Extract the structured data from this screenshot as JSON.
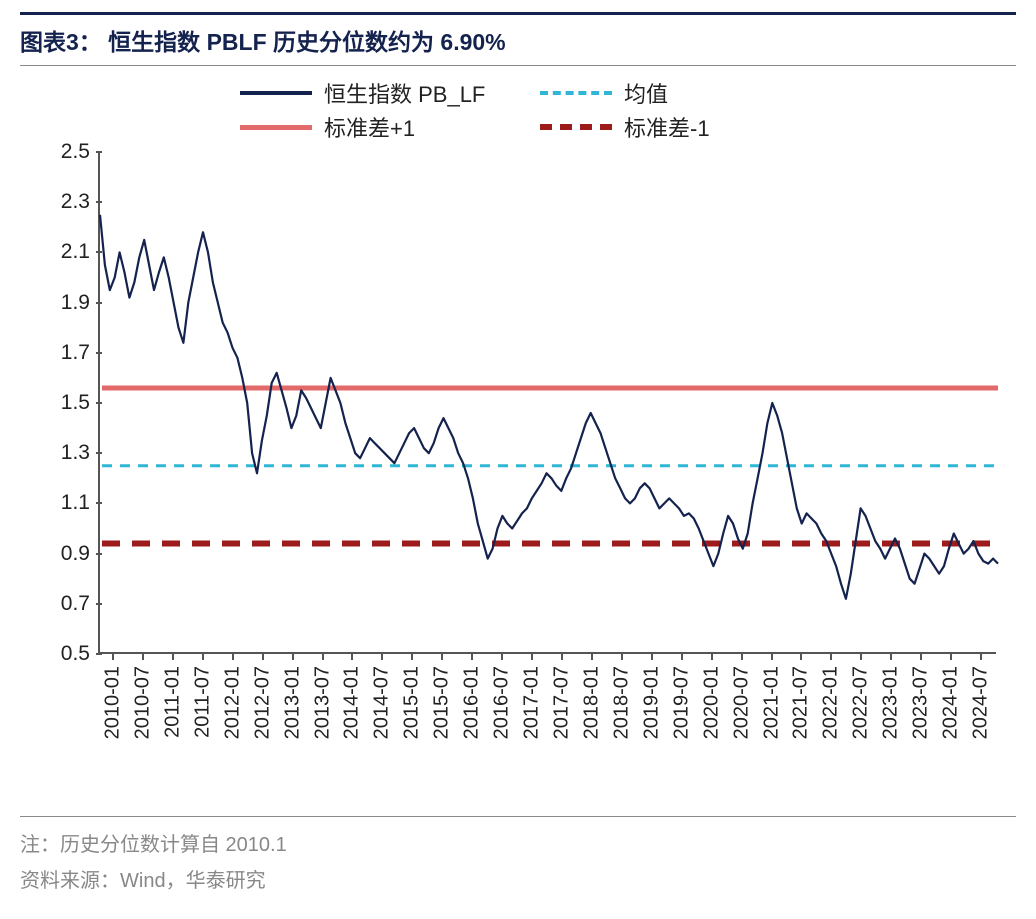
{
  "title": "图表3：  恒生指数 PBLF 历史分位数约为 6.90%",
  "footer": {
    "note": "注：历史分位数计算自 2010.1",
    "source": "资料来源：Wind，华泰研究"
  },
  "chart": {
    "type": "line",
    "background_color": "#ffffff",
    "title_color": "#14224e",
    "axis_color": "#555555",
    "label_fontsize": 21,
    "xlabel_fontsize": 20,
    "ylim": [
      0.5,
      2.5
    ],
    "yticks": [
      0.5,
      0.7,
      0.9,
      1.1,
      1.3,
      1.5,
      1.7,
      1.9,
      2.1,
      2.3,
      2.5
    ],
    "xticks": [
      "2010-01",
      "2010-07",
      "2011-01",
      "2011-07",
      "2012-01",
      "2012-07",
      "2013-01",
      "2013-07",
      "2014-01",
      "2014-07",
      "2015-01",
      "2015-07",
      "2016-01",
      "2016-07",
      "2017-01",
      "2017-07",
      "2018-01",
      "2018-07",
      "2019-01",
      "2019-07",
      "2020-01",
      "2020-07",
      "2021-01",
      "2021-07",
      "2022-01",
      "2022-07",
      "2023-01",
      "2023-07",
      "2024-01",
      "2024-07"
    ],
    "legend": {
      "items": [
        {
          "key": "pb_lf",
          "label": "恒生指数 PB_LF",
          "swatch": "sw-solid-navy"
        },
        {
          "key": "mean",
          "label": "均值",
          "swatch": "sw-dash-cyan"
        },
        {
          "key": "sd_p1",
          "label": "标准差+1",
          "swatch": "sw-solid-red"
        },
        {
          "key": "sd_m1",
          "label": "标准差-1",
          "swatch": "sw-dash-dkred"
        }
      ]
    },
    "ref_lines": {
      "mean": {
        "value": 1.25,
        "color": "#2fb6d6",
        "dash": "10,8",
        "width": 3
      },
      "sd_p1": {
        "value": 1.56,
        "color": "#e26a6a",
        "dash": null,
        "width": 5
      },
      "sd_m1": {
        "value": 0.94,
        "color": "#9e1b1b",
        "dash": "18,12",
        "width": 6
      }
    },
    "main_series": {
      "color": "#14224e",
      "width": 2.2,
      "values": [
        2.25,
        2.05,
        1.95,
        2.0,
        2.1,
        2.02,
        1.92,
        1.98,
        2.08,
        2.15,
        2.05,
        1.95,
        2.02,
        2.08,
        2.0,
        1.9,
        1.8,
        1.74,
        1.9,
        2.0,
        2.1,
        2.18,
        2.1,
        1.98,
        1.9,
        1.82,
        1.78,
        1.72,
        1.68,
        1.6,
        1.5,
        1.3,
        1.22,
        1.35,
        1.45,
        1.58,
        1.62,
        1.55,
        1.48,
        1.4,
        1.45,
        1.55,
        1.52,
        1.48,
        1.44,
        1.4,
        1.5,
        1.6,
        1.55,
        1.5,
        1.42,
        1.36,
        1.3,
        1.28,
        1.32,
        1.36,
        1.34,
        1.32,
        1.3,
        1.28,
        1.26,
        1.3,
        1.34,
        1.38,
        1.4,
        1.36,
        1.32,
        1.3,
        1.34,
        1.4,
        1.44,
        1.4,
        1.36,
        1.3,
        1.26,
        1.2,
        1.12,
        1.02,
        0.95,
        0.88,
        0.92,
        1.0,
        1.05,
        1.02,
        1.0,
        1.03,
        1.06,
        1.08,
        1.12,
        1.15,
        1.18,
        1.22,
        1.2,
        1.17,
        1.15,
        1.2,
        1.24,
        1.3,
        1.36,
        1.42,
        1.46,
        1.42,
        1.38,
        1.32,
        1.26,
        1.2,
        1.16,
        1.12,
        1.1,
        1.12,
        1.16,
        1.18,
        1.16,
        1.12,
        1.08,
        1.1,
        1.12,
        1.1,
        1.08,
        1.05,
        1.06,
        1.04,
        1.0,
        0.95,
        0.9,
        0.85,
        0.9,
        0.98,
        1.05,
        1.02,
        0.96,
        0.92,
        0.98,
        1.1,
        1.2,
        1.3,
        1.42,
        1.5,
        1.45,
        1.38,
        1.28,
        1.18,
        1.08,
        1.02,
        1.06,
        1.04,
        1.02,
        0.98,
        0.95,
        0.9,
        0.85,
        0.78,
        0.72,
        0.82,
        0.95,
        1.08,
        1.05,
        1.0,
        0.95,
        0.92,
        0.88,
        0.92,
        0.96,
        0.92,
        0.86,
        0.8,
        0.78,
        0.84,
        0.9,
        0.88,
        0.85,
        0.82,
        0.85,
        0.92,
        0.98,
        0.94,
        0.9,
        0.92,
        0.95,
        0.9,
        0.87,
        0.86,
        0.88,
        0.86
      ]
    }
  }
}
